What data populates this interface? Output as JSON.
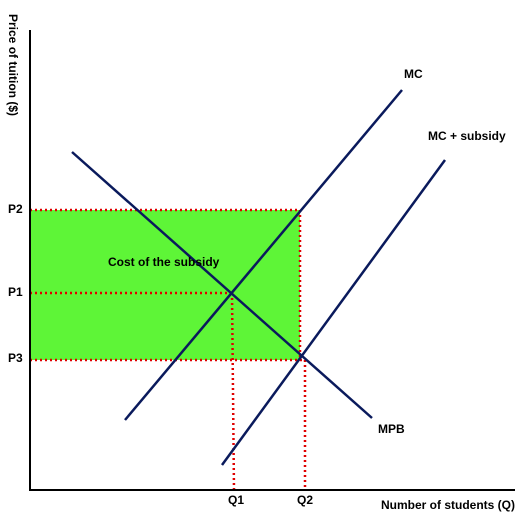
{
  "axes": {
    "y_label": "Price of tuition  ($)",
    "x_label": "Number of students (Q)"
  },
  "price_ticks": [
    "P2",
    "P1",
    "P3"
  ],
  "quantity_ticks": [
    "Q1",
    "Q2"
  ],
  "curves": [
    "MC",
    "MC + subsidy",
    "MPB"
  ],
  "area_label": "Cost of the subsidy"
}
